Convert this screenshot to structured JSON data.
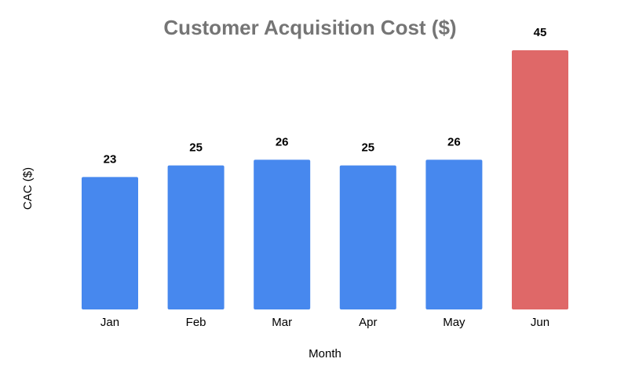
{
  "chart_data": {
    "type": "bar",
    "title": "Customer Acquisition Cost ($)",
    "xlabel": "Month",
    "ylabel": "CAC ($)",
    "categories": [
      "Jan",
      "Feb",
      "Mar",
      "Apr",
      "May",
      "Jun"
    ],
    "values": [
      23,
      25,
      26,
      25,
      26,
      45
    ],
    "data_labels": [
      "23",
      "25",
      "26",
      "25",
      "26",
      "45"
    ],
    "ylim": [
      0,
      45
    ],
    "grid": false,
    "legend": "none",
    "colors": {
      "default_bar": "#4788EE",
      "highlight_bar": "#DF6868",
      "title": "#757575",
      "text": "#000000"
    },
    "highlight_index": 5
  }
}
